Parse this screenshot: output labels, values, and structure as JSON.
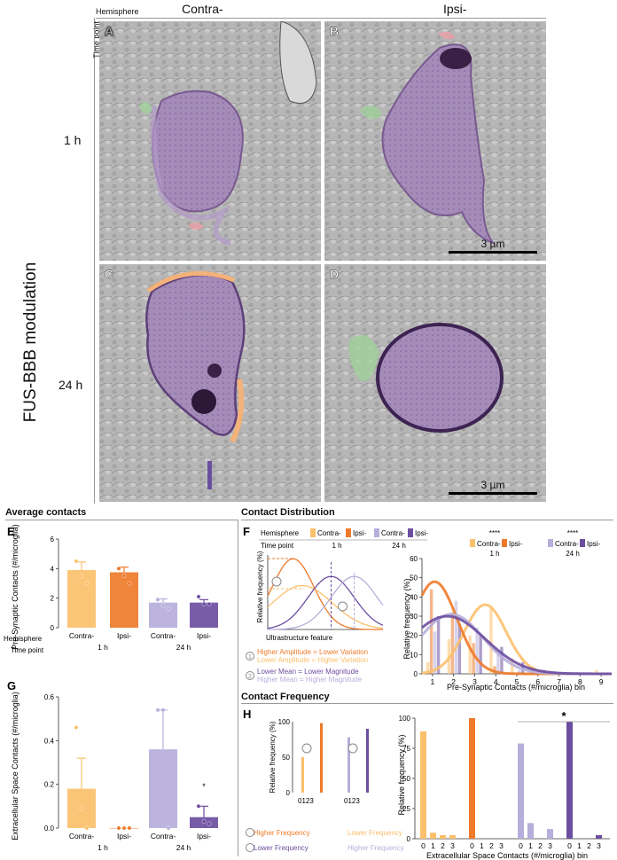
{
  "header": {
    "hemisphere_label": "Hemisphere",
    "timepoint_label": "Time point",
    "col_contra": "Contra-",
    "col_ipsi": "Ipsi-",
    "row_1h": "1 h",
    "row_24h": "24 h",
    "side_title": "FUS-BBB modulation"
  },
  "panels": {
    "A": "A",
    "B": "B",
    "C": "C",
    "D": "D",
    "scale_label": "3 µm"
  },
  "sections": {
    "avg": "Average contacts",
    "dist": "Contact Distribution",
    "freq": "Contact Frequency"
  },
  "colors": {
    "contra1h": "#fbc06c",
    "ipsi1h": "#ee7a2a",
    "contra24h": "#b7aedb",
    "ipsi24h": "#6c4ea0",
    "membrane_purple": "#8a6aa6",
    "membrane_orange": "#f3b27a",
    "green": "#9fd19a",
    "pink": "#e8a0a8"
  },
  "panelE": {
    "letter": "E",
    "ylabel": "Pre-Synaptic Contacts (#/microglia)",
    "yticks": [
      "0",
      "2",
      "4",
      "6"
    ],
    "hemi_label": "Hemisphere",
    "time_label": "Time point",
    "xlabels": [
      "Contra-",
      "Ipsi-",
      "Contra-",
      "Ipsi-"
    ],
    "times": [
      "1 h",
      "24 h"
    ]
  },
  "panelG": {
    "letter": "G",
    "ylabel": "Extracellular Space Contacts (#/microglia)",
    "yticks": [
      "0.0",
      "0.2",
      "0.4",
      "0.6"
    ],
    "xlabels": [
      "Contra-",
      "Ipsi-",
      "Contra-",
      "Ipsi-"
    ],
    "times": [
      "1 h",
      "24 h"
    ],
    "star": "*"
  },
  "panelF": {
    "letter": "F",
    "legend_hemisphere": "Hemisphere",
    "legend_timepoint": "Time point",
    "legend_items": [
      "Contra-",
      "Ipsi-",
      "Contra-",
      "Ipsi-"
    ],
    "legend_times": [
      "1 h",
      "24 h"
    ],
    "schematic_ylabel": "Relative frequency (%)",
    "schematic_xlabel": "Ultrastructure feature",
    "note1a": "Higher Amplitude = Lower Variation",
    "note1b": "Lower Amplitude = Higher Variation",
    "note2a": "Lower Mean = Lower Magnitude",
    "note2b": "Higher Mean = Higher Magnitude",
    "sig": "****",
    "ylabel": "Relative frequency (%)",
    "xlabel": "Pre-Synaptic Contacts (#/microglia) bin",
    "yticks": [
      "0",
      "10",
      "20",
      "30",
      "40",
      "50",
      "60"
    ],
    "xticks": [
      "1",
      "2",
      "3",
      "4",
      "5",
      "6",
      "7",
      "8",
      "9"
    ]
  },
  "panelH": {
    "letter": "H",
    "schematic_ylabel": "Relative frequency (%)",
    "schematic_yticks": [
      "0",
      "50",
      "100"
    ],
    "schematic_xticks": "0123",
    "note1a": "Higher Frequency",
    "note1b": "Lower Frequency",
    "note2a": "Lower Frequency",
    "note2b": "Higher Frequency",
    "ylabel": "Relative frequency (%)",
    "yticks": [
      "0",
      "25",
      "50",
      "75",
      "100"
    ],
    "xlabel": "Extracellular Space Contacts (#/microglia) bin",
    "xticks": [
      "0",
      "1",
      "2",
      "3"
    ],
    "star": "*"
  },
  "chart_data": [
    {
      "type": "bar",
      "id": "E",
      "ylabel": "Pre-Synaptic Contacts (#/microglia)",
      "ylim": [
        0,
        6
      ],
      "categories": [
        "Contra- 1 h",
        "Ipsi- 1 h",
        "Contra- 24 h",
        "Ipsi- 24 h"
      ],
      "values": [
        3.9,
        3.75,
        1.7,
        1.7
      ],
      "errors": [
        0.55,
        0.35,
        0.25,
        0.2
      ],
      "points": [
        [
          4.5,
          3.5,
          3.0
        ],
        [
          4.0,
          3.5,
          3.0
        ],
        [
          1.9,
          1.5,
          1.3
        ],
        [
          2.1,
          1.6,
          1.6
        ]
      ]
    },
    {
      "type": "bar",
      "id": "G",
      "ylabel": "Extracellular Space Contacts (#/microglia)",
      "ylim": [
        0,
        0.6
      ],
      "categories": [
        "Contra- 1 h",
        "Ipsi- 1 h",
        "Contra- 24 h",
        "Ipsi- 24 h"
      ],
      "values": [
        0.18,
        0.0,
        0.36,
        0.05
      ],
      "errors": [
        0.14,
        0.0,
        0.18,
        0.05
      ],
      "points": [
        [
          0.46,
          0.09,
          0.0
        ],
        [
          0.0,
          0.0,
          0.0
        ],
        [
          0.54,
          0.54,
          0.0
        ],
        [
          0.1,
          0.03,
          0.02
        ]
      ]
    },
    {
      "type": "bar",
      "id": "F",
      "ylabel": "Relative frequency (%)",
      "xlabel": "Pre-Synaptic Contacts (#/microglia) bin",
      "ylim": [
        0,
        60
      ],
      "bins": [
        1,
        2,
        3,
        4,
        5,
        6,
        7,
        8,
        9
      ],
      "series": [
        {
          "name": "Contra- 1 h",
          "values": [
            6,
            18,
            20,
            34,
            8,
            4,
            0,
            0,
            2
          ]
        },
        {
          "name": "Ipsi- 1 h",
          "values": [
            44,
            32,
            16,
            4,
            0,
            0,
            0,
            0,
            0
          ]
        },
        {
          "name": "Contra- 24 h",
          "values": [
            22,
            38,
            24,
            10,
            2,
            0,
            0,
            0,
            0
          ]
        },
        {
          "name": "Ipsi- 24 h",
          "values": [
            30,
            26,
            20,
            14,
            6,
            2,
            0,
            0,
            0
          ]
        }
      ],
      "curves": [
        {
          "name": "Contra- 1 h",
          "mean": 3.5,
          "sd": 1.0,
          "amp": 36
        },
        {
          "name": "Ipsi- 1 h",
          "mean": 1.1,
          "sd": 1.05,
          "amp": 48
        },
        {
          "name": "Contra- 24 h",
          "mean": 1.9,
          "sd": 1.5,
          "amp": 31
        },
        {
          "name": "Ipsi- 24 h",
          "mean": 1.7,
          "sd": 1.8,
          "amp": 30
        }
      ]
    },
    {
      "type": "bar",
      "id": "H",
      "ylabel": "Relative frequency (%)",
      "xlabel": "Extracellular Space Contacts (#/microglia) bin",
      "ylim": [
        0,
        100
      ],
      "bins": [
        0,
        1,
        2,
        3
      ],
      "series": [
        {
          "name": "Contra- 1 h",
          "values": [
            89,
            5,
            3,
            3
          ]
        },
        {
          "name": "Ipsi- 1 h",
          "values": [
            100,
            0,
            0,
            0
          ]
        },
        {
          "name": "Contra- 24 h",
          "values": [
            79,
            13,
            0,
            8
          ]
        },
        {
          "name": "Ipsi- 24 h",
          "values": [
            97,
            0,
            0,
            3
          ]
        }
      ]
    }
  ]
}
